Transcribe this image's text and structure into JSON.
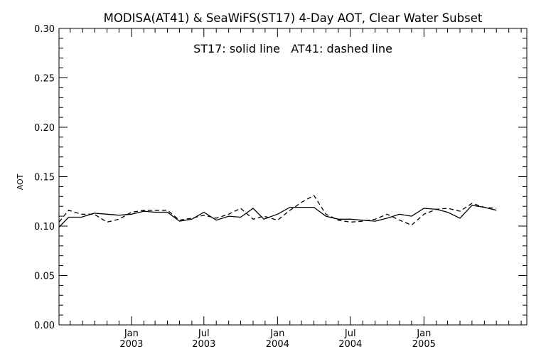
{
  "chart_data": {
    "type": "line",
    "title": "MODISA(AT41) & SeaWiFS(ST17) 4-Day AOT, Clear Water Subset",
    "annotation": "ST17: solid line   AT41: dashed line",
    "ylabel": "AOT",
    "xlabel": "",
    "ylim": [
      0.0,
      0.3
    ],
    "xlim": [
      "2002-07-04",
      "2005-09-15"
    ],
    "yticks": [
      "0.00",
      "0.05",
      "0.10",
      "0.15",
      "0.20",
      "0.25",
      "0.30"
    ],
    "xticks": [
      {
        "date": "2003-01-01",
        "month": "Jan",
        "year": "2003"
      },
      {
        "date": "2003-07-01",
        "month": "Jul",
        "year": "2003"
      },
      {
        "date": "2004-01-01",
        "month": "Jan",
        "year": "2004"
      },
      {
        "date": "2004-07-01",
        "month": "Jul",
        "year": "2004"
      },
      {
        "date": "2005-01-01",
        "month": "Jan",
        "year": "2005"
      }
    ],
    "grid": false,
    "series": [
      {
        "name": "ST17",
        "style": "solid",
        "color": "#000000",
        "points": [
          [
            "2002-07-04",
            0.099
          ],
          [
            "2002-07-28",
            0.109
          ],
          [
            "2002-08-29",
            0.109
          ],
          [
            "2002-09-30",
            0.113
          ],
          [
            "2002-11-01",
            0.112
          ],
          [
            "2002-12-01",
            0.111
          ],
          [
            "2003-01-01",
            0.112
          ],
          [
            "2003-02-01",
            0.115
          ],
          [
            "2003-03-01",
            0.114
          ],
          [
            "2003-04-01",
            0.114
          ],
          [
            "2003-05-01",
            0.105
          ],
          [
            "2003-06-01",
            0.107
          ],
          [
            "2003-07-01",
            0.114
          ],
          [
            "2003-08-01",
            0.106
          ],
          [
            "2003-09-01",
            0.11
          ],
          [
            "2003-10-01",
            0.109
          ],
          [
            "2003-11-01",
            0.118
          ],
          [
            "2003-11-28",
            0.107
          ],
          [
            "2004-01-01",
            0.112
          ],
          [
            "2004-02-01",
            0.119
          ],
          [
            "2004-03-01",
            0.119
          ],
          [
            "2004-04-01",
            0.119
          ],
          [
            "2004-05-01",
            0.11
          ],
          [
            "2004-06-01",
            0.107
          ],
          [
            "2004-07-01",
            0.107
          ],
          [
            "2004-08-01",
            0.106
          ],
          [
            "2004-09-01",
            0.105
          ],
          [
            "2004-10-01",
            0.108
          ],
          [
            "2004-11-01",
            0.112
          ],
          [
            "2004-12-01",
            0.11
          ],
          [
            "2005-01-01",
            0.118
          ],
          [
            "2005-02-01",
            0.117
          ],
          [
            "2005-03-01",
            0.114
          ],
          [
            "2005-04-01",
            0.108
          ],
          [
            "2005-05-01",
            0.121
          ],
          [
            "2005-06-01",
            0.119
          ],
          [
            "2005-07-01",
            0.116
          ]
        ]
      },
      {
        "name": "AT41",
        "style": "dashed",
        "color": "#000000",
        "points": [
          [
            "2002-07-04",
            0.104
          ],
          [
            "2002-07-28",
            0.116
          ],
          [
            "2002-08-29",
            0.112
          ],
          [
            "2002-09-30",
            0.112
          ],
          [
            "2002-11-01",
            0.104
          ],
          [
            "2002-12-01",
            0.107
          ],
          [
            "2003-01-01",
            0.114
          ],
          [
            "2003-02-01",
            0.116
          ],
          [
            "2003-03-01",
            0.116
          ],
          [
            "2003-04-01",
            0.116
          ],
          [
            "2003-05-01",
            0.106
          ],
          [
            "2003-06-01",
            0.108
          ],
          [
            "2003-07-01",
            0.111
          ],
          [
            "2003-08-01",
            0.108
          ],
          [
            "2003-09-01",
            0.112
          ],
          [
            "2003-10-01",
            0.118
          ],
          [
            "2003-11-01",
            0.107
          ],
          [
            "2003-11-28",
            0.11
          ],
          [
            "2004-01-01",
            0.106
          ],
          [
            "2004-02-01",
            0.116
          ],
          [
            "2004-03-01",
            0.124
          ],
          [
            "2004-04-01",
            0.131
          ],
          [
            "2004-05-01",
            0.112
          ],
          [
            "2004-06-01",
            0.106
          ],
          [
            "2004-07-01",
            0.104
          ],
          [
            "2004-08-01",
            0.105
          ],
          [
            "2004-09-01",
            0.107
          ],
          [
            "2004-10-01",
            0.112
          ],
          [
            "2004-11-01",
            0.106
          ],
          [
            "2004-12-01",
            0.101
          ],
          [
            "2005-01-01",
            0.112
          ],
          [
            "2005-02-01",
            0.117
          ],
          [
            "2005-03-01",
            0.118
          ],
          [
            "2005-04-01",
            0.115
          ],
          [
            "2005-05-01",
            0.123
          ],
          [
            "2005-06-01",
            0.119
          ],
          [
            "2005-07-01",
            0.118
          ]
        ]
      }
    ]
  }
}
